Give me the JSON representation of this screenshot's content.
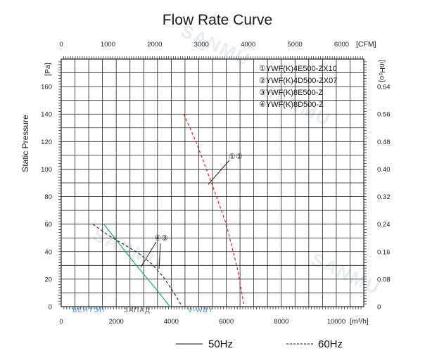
{
  "chart_data": {
    "type": "line",
    "title": "Flow Rate Curve",
    "ylabel": "Static Pressure",
    "y_unit_left": "[Pa]",
    "y_unit_right": "[inH₂o]",
    "x_unit_bottom": "[m³/h]",
    "x_unit_top": "[CFM]",
    "xlim": [
      0,
      11000
    ],
    "ylim": [
      0,
      180
    ],
    "x_ticks_bottom": [
      0,
      2000,
      4000,
      6000,
      8000,
      10000
    ],
    "x_ticks_bottom_labels": [
      "0",
      "2000",
      "4000",
      "6000",
      "8000",
      "10000"
    ],
    "x_ticks_top_cfm": [
      0,
      1000,
      2000,
      3000,
      4000,
      5000,
      6000
    ],
    "x_ticks_top_labels": [
      "0",
      "1000",
      "2000",
      "3000",
      "4000",
      "5000",
      "6000"
    ],
    "y_ticks_left": [
      0,
      20,
      40,
      60,
      80,
      100,
      120,
      140,
      160
    ],
    "y_ticks_left_labels": [
      "0",
      "20",
      "40",
      "60",
      "80",
      "100",
      "120",
      "140",
      "160"
    ],
    "y_ticks_right_labels": [
      "0",
      "0.08",
      "0.16",
      "0.24",
      "0.32",
      "0.40",
      "0.48",
      "0.56",
      "0.64"
    ],
    "grid": true,
    "legend_position": "top-right",
    "legend": [
      "①YWF(K)4E500-ZX10",
      "②YWF(K)4D500-ZX07",
      "③YWF(K)8E500-Z",
      "④YWF(K)8D500-Z"
    ],
    "series": [
      {
        "color": "#e02020",
        "style": "dashed",
        "x": [
          4460,
          4900,
          5500,
          6000,
          6400,
          6650
        ],
        "y": [
          140,
          120,
          88,
          60,
          28,
          0
        ]
      },
      {
        "color": "#22a86a",
        "style": "solid",
        "x": [
          1550,
          2100,
          2650,
          3150,
          3600,
          3950
        ],
        "y": [
          60,
          46,
          32,
          20,
          9,
          0
        ]
      },
      {
        "color": "#333333",
        "style": "dashed",
        "x": [
          1150,
          1700,
          2300,
          2800,
          3300,
          3700,
          4100,
          4400
        ],
        "y": [
          60,
          52,
          45,
          39,
          31,
          22,
          10,
          0
        ]
      }
    ],
    "annotations": [
      {
        "text": "①②",
        "series": 0
      },
      {
        "text": "④③",
        "series": 1
      }
    ],
    "line_legend": {
      "solid": "50Hz",
      "dashed": "60Hz"
    }
  },
  "watermark": {
    "text": "SANMU",
    "brand_left": "ВЕНТЭП",
    "brand_mid": "ЗАПАД",
    "brand_right": "V-WBY"
  }
}
